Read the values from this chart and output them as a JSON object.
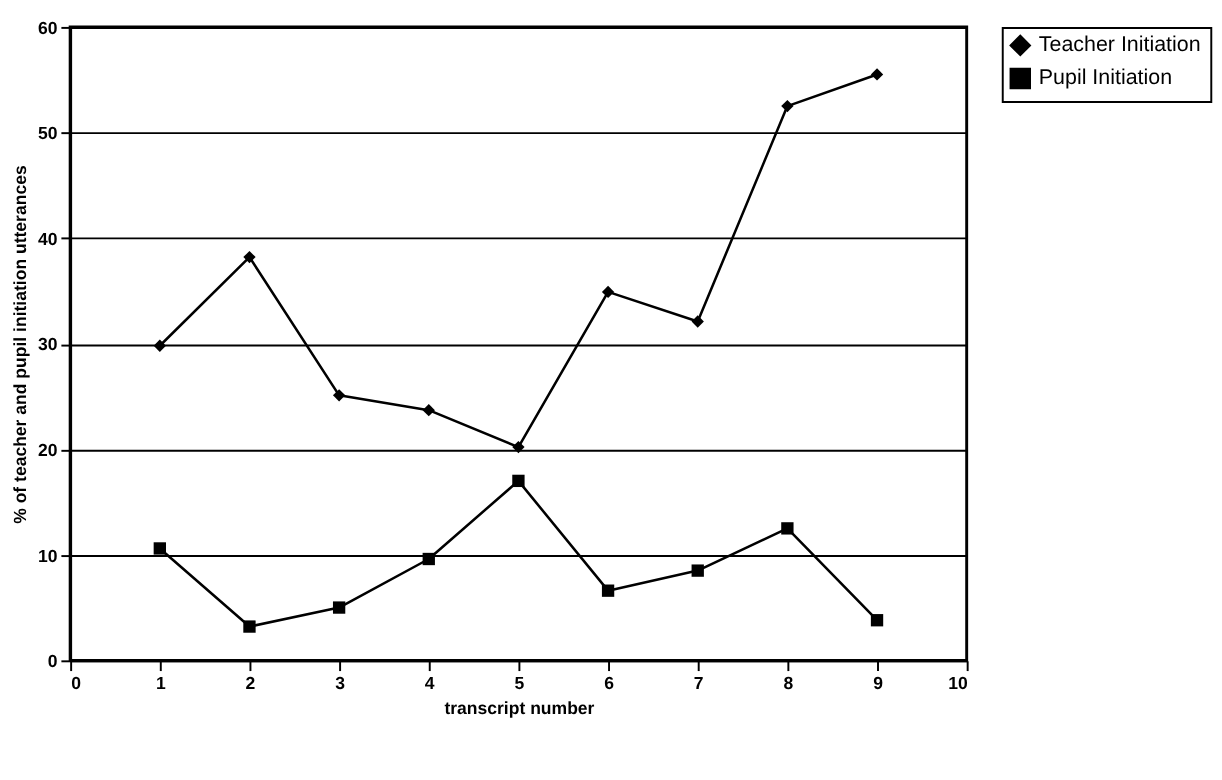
{
  "chart_data": {
    "type": "line",
    "xlabel": "transcript number",
    "ylabel": "% of teacher and pupil initiation utterances",
    "x": [
      1,
      2,
      3,
      4,
      5,
      6,
      7,
      8,
      9
    ],
    "series": [
      {
        "name": "Teacher Initiation",
        "color": "#000000",
        "marker": "diamond",
        "values": [
          29.8,
          38.2,
          25.1,
          23.7,
          20.2,
          34.9,
          32.1,
          52.5,
          55.5
        ]
      },
      {
        "name": "Pupil Initiation",
        "color": "#000000",
        "marker": "square",
        "values": [
          10.6,
          3.2,
          5.0,
          9.6,
          17.0,
          6.6,
          8.5,
          12.5,
          3.8
        ]
      }
    ],
    "xlim": [
      0,
      10
    ],
    "xticks": [
      0,
      1,
      2,
      3,
      4,
      5,
      6,
      7,
      8,
      9,
      10
    ],
    "ylim": [
      0,
      60
    ],
    "yticks": [
      0,
      10,
      20,
      30,
      40,
      50,
      60
    ],
    "grid": "y",
    "legend": "right",
    "line_style": "solid"
  }
}
